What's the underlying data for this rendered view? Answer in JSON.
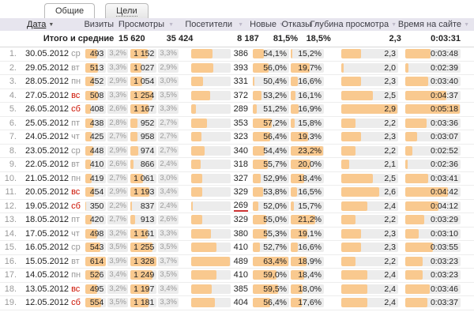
{
  "tabs": [
    {
      "label": "Общие",
      "active": true
    },
    {
      "label": "Цели",
      "active": false
    }
  ],
  "icons": {
    "sort": "▼"
  },
  "columns": [
    "Дата",
    "Визиты",
    "Просмотры",
    "Посетители",
    "Новые",
    "Отказы",
    "Глубина просмотра",
    "Время на сайте"
  ],
  "sorted_column": "Дата",
  "summary": {
    "label": "Итого и средние",
    "visits": "15 620",
    "views": "35 424",
    "visitors": "8 187",
    "new_pct": "81,5%",
    "bounce_pct": "18,5%",
    "depth": "2,3",
    "time": "0:03:31"
  },
  "colors": {
    "bar_fill": "#f9c98f",
    "bar_track": "#ececec",
    "header_bg": "#e7e5ee",
    "weekend_red": "#cc1100",
    "best_green": "#2ca02c",
    "worst_red": "#cc3333"
  },
  "rows": [
    {
      "n": "1.",
      "date": "30.05.2012",
      "day": "ср",
      "weekend": false,
      "visits": "493",
      "visits_share": "3,2%",
      "views": "1 152",
      "views_share": "3,3%",
      "visitors": "386",
      "new_pct": "54,1%",
      "bounce_pct": "15,2%",
      "depth": "2,3",
      "time": "0:03:48",
      "hl": {
        "bounce_pct": "green"
      }
    },
    {
      "n": "2.",
      "date": "29.05.2012",
      "day": "вт",
      "weekend": false,
      "visits": "513",
      "visits_share": "3,3%",
      "views": "1 027",
      "views_share": "2,9%",
      "visitors": "393",
      "new_pct": "56,0%",
      "bounce_pct": "19,7%",
      "depth": "2,0",
      "time": "0:02:39",
      "hl": {}
    },
    {
      "n": "3.",
      "date": "28.05.2012",
      "day": "пн",
      "weekend": false,
      "visits": "452",
      "visits_share": "2,9%",
      "views": "1 054",
      "views_share": "3,0%",
      "visitors": "331",
      "new_pct": "50,4%",
      "bounce_pct": "16,6%",
      "depth": "2,3",
      "time": "0:03:40",
      "hl": {}
    },
    {
      "n": "4.",
      "date": "27.05.2012",
      "day": "вс",
      "weekend": true,
      "visits": "508",
      "visits_share": "3,3%",
      "views": "1 254",
      "views_share": "3,5%",
      "visitors": "372",
      "new_pct": "53,2%",
      "bounce_pct": "16,1%",
      "depth": "2,5",
      "time": "0:04:37",
      "hl": {}
    },
    {
      "n": "5.",
      "date": "26.05.2012",
      "day": "сб",
      "weekend": true,
      "visits": "408",
      "visits_share": "2,6%",
      "views": "1 167",
      "views_share": "3,3%",
      "visitors": "289",
      "new_pct": "51,2%",
      "bounce_pct": "16,9%",
      "depth": "2,9",
      "time": "0:05:18",
      "hl": {
        "depth": "green",
        "time": "green"
      }
    },
    {
      "n": "6.",
      "date": "25.05.2012",
      "day": "пт",
      "weekend": false,
      "visits": "438",
      "visits_share": "2,8%",
      "views": "952",
      "views_share": "2,7%",
      "visitors": "353",
      "new_pct": "57,2%",
      "bounce_pct": "15,8%",
      "depth": "2,2",
      "time": "0:03:36",
      "hl": {}
    },
    {
      "n": "7.",
      "date": "24.05.2012",
      "day": "чт",
      "weekend": false,
      "visits": "425",
      "visits_share": "2,7%",
      "views": "958",
      "views_share": "2,7%",
      "visitors": "323",
      "new_pct": "56,4%",
      "bounce_pct": "19,3%",
      "depth": "2,3",
      "time": "0:03:07",
      "hl": {}
    },
    {
      "n": "8.",
      "date": "23.05.2012",
      "day": "ср",
      "weekend": false,
      "visits": "448",
      "visits_share": "2,9%",
      "views": "974",
      "views_share": "2,7%",
      "visitors": "340",
      "new_pct": "54,4%",
      "bounce_pct": "23,2%",
      "depth": "2,2",
      "time": "0:02:52",
      "hl": {
        "bounce_pct": "red"
      }
    },
    {
      "n": "9.",
      "date": "22.05.2012",
      "day": "вт",
      "weekend": false,
      "visits": "410",
      "visits_share": "2,6%",
      "views": "866",
      "views_share": "2,4%",
      "visitors": "318",
      "new_pct": "55,7%",
      "bounce_pct": "20,0%",
      "depth": "2,1",
      "time": "0:02:36",
      "hl": {
        "time": "red"
      }
    },
    {
      "n": "10.",
      "date": "21.05.2012",
      "day": "пн",
      "weekend": false,
      "visits": "419",
      "visits_share": "2,7%",
      "views": "1 061",
      "views_share": "3,0%",
      "visitors": "327",
      "new_pct": "52,9%",
      "bounce_pct": "18,4%",
      "depth": "2,5",
      "time": "0:03:41",
      "hl": {}
    },
    {
      "n": "11.",
      "date": "20.05.2012",
      "day": "вс",
      "weekend": true,
      "visits": "454",
      "visits_share": "2,9%",
      "views": "1 193",
      "views_share": "3,4%",
      "visitors": "329",
      "new_pct": "53,8%",
      "bounce_pct": "16,5%",
      "depth": "2,6",
      "time": "0:04:42",
      "hl": {}
    },
    {
      "n": "12.",
      "date": "19.05.2012",
      "day": "сб",
      "weekend": true,
      "visits": "350",
      "visits_share": "2,2%",
      "views": "837",
      "views_share": "2,4%",
      "visitors": "269",
      "new_pct": "52,0%",
      "bounce_pct": "15,7%",
      "depth": "2,4",
      "time": "0:04:12",
      "hl": {
        "visits": "red",
        "views": "red",
        "visitors": "red"
      }
    },
    {
      "n": "13.",
      "date": "18.05.2012",
      "day": "пт",
      "weekend": false,
      "visits": "420",
      "visits_share": "2,7%",
      "views": "913",
      "views_share": "2,6%",
      "visitors": "329",
      "new_pct": "55,0%",
      "bounce_pct": "21,2%",
      "depth": "2,2",
      "time": "0:03:29",
      "hl": {}
    },
    {
      "n": "14.",
      "date": "17.05.2012",
      "day": "чт",
      "weekend": false,
      "visits": "498",
      "visits_share": "3,2%",
      "views": "1 161",
      "views_share": "3,3%",
      "visitors": "380",
      "new_pct": "55,3%",
      "bounce_pct": "19,1%",
      "depth": "2,3",
      "time": "0:03:10",
      "hl": {}
    },
    {
      "n": "15.",
      "date": "16.05.2012",
      "day": "ср",
      "weekend": false,
      "visits": "543",
      "visits_share": "3,5%",
      "views": "1 255",
      "views_share": "3,5%",
      "visitors": "410",
      "new_pct": "52,7%",
      "bounce_pct": "16,6%",
      "depth": "2,3",
      "time": "0:03:55",
      "hl": {}
    },
    {
      "n": "16.",
      "date": "15.05.2012",
      "day": "вт",
      "weekend": false,
      "visits": "614",
      "visits_share": "3,9%",
      "views": "1 328",
      "views_share": "3,7%",
      "visitors": "489",
      "new_pct": "63,4%",
      "bounce_pct": "18,9%",
      "depth": "2,2",
      "time": "0:03:23",
      "hl": {
        "new_pct": "green"
      }
    },
    {
      "n": "17.",
      "date": "14.05.2012",
      "day": "пн",
      "weekend": false,
      "visits": "526",
      "visits_share": "3,4%",
      "views": "1 249",
      "views_share": "3,5%",
      "visitors": "410",
      "new_pct": "59,0%",
      "bounce_pct": "18,4%",
      "depth": "2,4",
      "time": "0:03:23",
      "hl": {}
    },
    {
      "n": "18.",
      "date": "13.05.2012",
      "day": "вс",
      "weekend": true,
      "visits": "495",
      "visits_share": "3,2%",
      "views": "1 197",
      "views_share": "3,4%",
      "visitors": "385",
      "new_pct": "59,5%",
      "bounce_pct": "18,0%",
      "depth": "2,4",
      "time": "0:03:46",
      "hl": {}
    },
    {
      "n": "19.",
      "date": "12.05.2012",
      "day": "сб",
      "weekend": true,
      "visits": "554",
      "visits_share": "3,5%",
      "views": "1 181",
      "views_share": "3,3%",
      "visitors": "404",
      "new_pct": "56,4%",
      "bounce_pct": "17,6%",
      "depth": "2,4",
      "time": "0:03:37",
      "hl": {}
    }
  ]
}
